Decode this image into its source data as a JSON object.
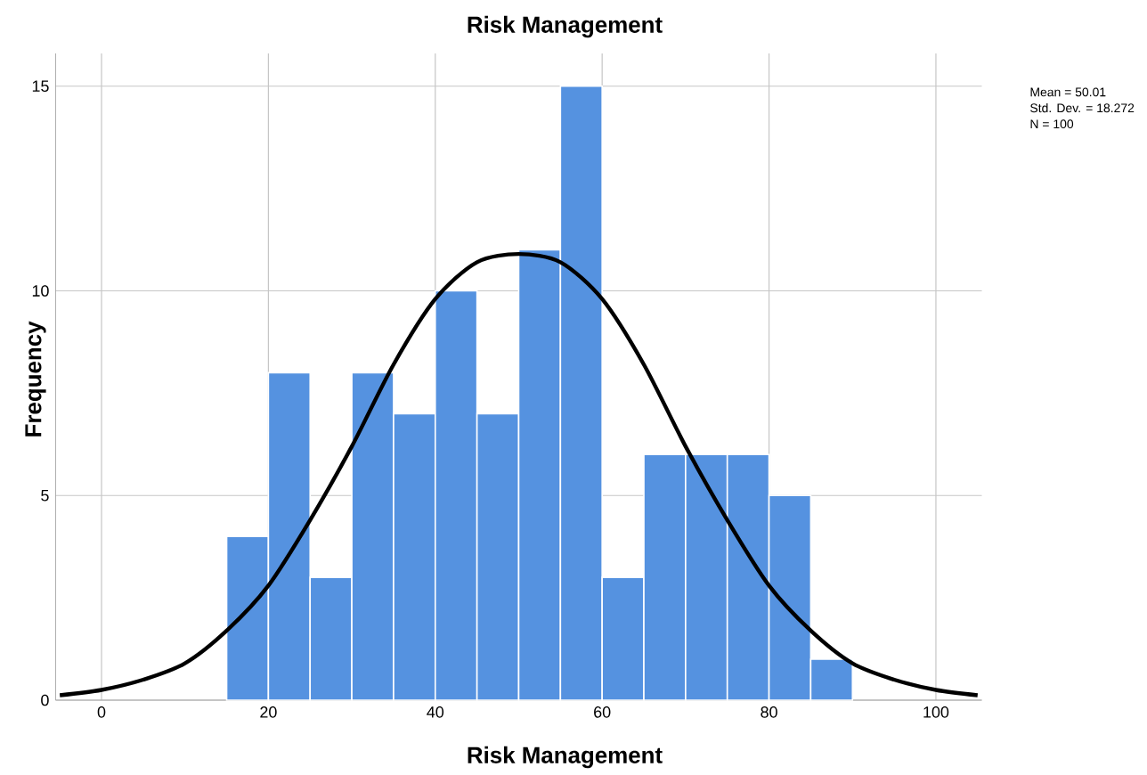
{
  "chart_data": {
    "type": "histogram",
    "title": "Risk Management",
    "xlabel": "Risk Management",
    "ylabel": "Frequency",
    "bins": [
      15,
      20,
      25,
      30,
      35,
      40,
      45,
      50,
      55,
      60,
      65,
      70,
      75,
      80,
      85,
      90
    ],
    "values": [
      4,
      8,
      3,
      8,
      7,
      10,
      7,
      11,
      15,
      3,
      6,
      6,
      6,
      5,
      1
    ],
    "color": "#5592e0",
    "series": [
      {
        "type": "line",
        "color": "#000000",
        "x": [
          -5,
          0,
          5,
          10,
          15,
          20,
          25,
          30,
          35,
          40,
          45,
          50,
          55,
          60,
          65,
          70,
          75,
          80,
          85,
          90,
          95,
          100,
          105
        ],
        "values": [
          0.12,
          0.25,
          0.5,
          0.9,
          1.7,
          2.8,
          4.4,
          6.2,
          8.2,
          9.8,
          10.7,
          10.9,
          10.7,
          9.8,
          8.2,
          6.2,
          4.4,
          2.8,
          1.7,
          0.9,
          0.5,
          0.25,
          0.12
        ]
      }
    ],
    "xlim": [
      -5.5,
      105.5
    ],
    "ylim": [
      0,
      15.8
    ],
    "xticks": [
      0,
      20,
      40,
      60,
      80,
      100
    ],
    "yticks": [
      0,
      5,
      10,
      15
    ],
    "grid": true,
    "annotations": [
      "Mean = 50.01",
      "Std. Dev. = 18.272",
      "N = 100"
    ]
  }
}
